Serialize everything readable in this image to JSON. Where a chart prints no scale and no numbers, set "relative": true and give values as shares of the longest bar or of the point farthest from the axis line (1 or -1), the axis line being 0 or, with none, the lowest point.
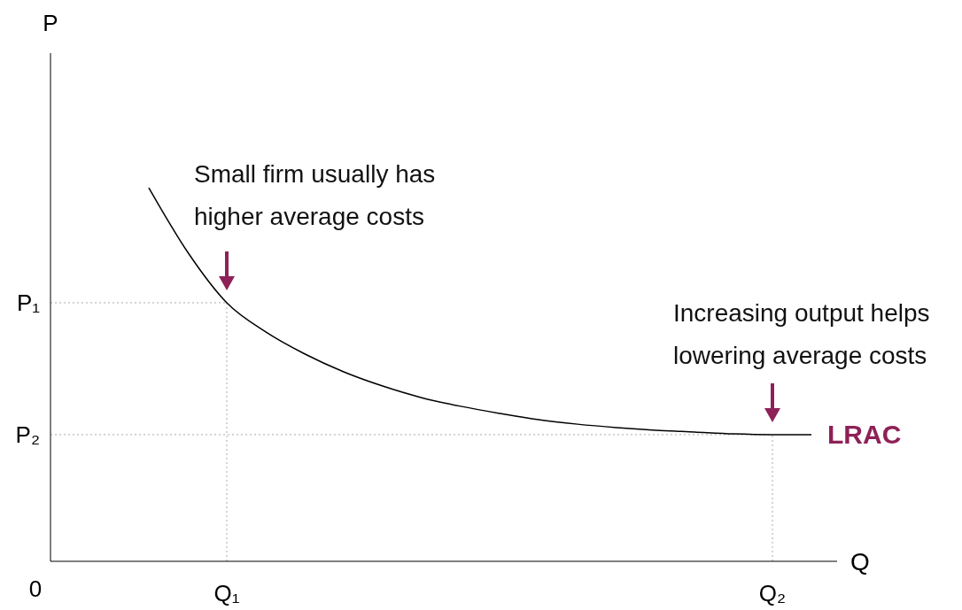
{
  "chart_data": {
    "type": "line",
    "relative": true,
    "xlabel": "Q",
    "categories": [
      null,
      null,
      "Q₁",
      null,
      null,
      null,
      null,
      null,
      null,
      null,
      null,
      null,
      null,
      null,
      null,
      null,
      "Q₂",
      null
    ],
    "series": [
      {
        "name": "LRAC",
        "color": "#000000",
        "values": [
          1.0,
          0.827,
          0.692,
          0.614,
          0.555,
          0.507,
          0.469,
          0.438,
          0.415,
          0.396,
          0.379,
          0.367,
          0.358,
          0.351,
          0.346,
          0.341,
          0.339,
          0.339
        ]
      }
    ],
    "ref_lines": [
      {
        "axis": "y",
        "value": 0.692,
        "label": "P₁",
        "color": "#aaaaaa",
        "line_style": "dotted"
      },
      {
        "axis": "y",
        "value": 0.339,
        "label": "P₂",
        "color": "#aaaaaa",
        "line_style": "dotted"
      },
      {
        "axis": "x",
        "value": "Q₁",
        "color": "#aaaaaa",
        "line_style": "dotted"
      },
      {
        "axis": "x",
        "value": "Q₂",
        "color": "#aaaaaa",
        "line_style": "dotted"
      }
    ],
    "annotations": [
      "P",
      "0",
      {
        "text": "Small firm usually has higher average costs",
        "x": "Q₁",
        "y": 0.692
      },
      {
        "text": "Increasing output helps lowering average costs",
        "x": "Q₂",
        "y": 0.339
      }
    ],
    "tick_labels": "x"
  }
}
